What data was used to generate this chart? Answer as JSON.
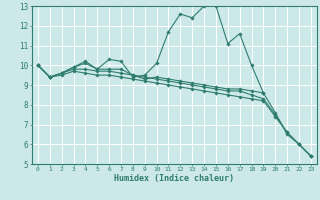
{
  "xlabel": "Humidex (Indice chaleur)",
  "ylabel": "",
  "bg_color": "#cce8e8",
  "grid_color": "#ffffff",
  "line_color": "#2e7d6e",
  "xlim": [
    -0.5,
    23.5
  ],
  "ylim": [
    5,
    13
  ],
  "xticks": [
    0,
    1,
    2,
    3,
    4,
    5,
    6,
    7,
    8,
    9,
    10,
    11,
    12,
    13,
    14,
    15,
    16,
    17,
    18,
    19,
    20,
    21,
    22,
    23
  ],
  "yticks": [
    5,
    6,
    7,
    8,
    9,
    10,
    11,
    12,
    13
  ],
  "series": [
    [
      10.0,
      9.4,
      9.6,
      9.9,
      10.2,
      9.8,
      10.3,
      10.2,
      9.4,
      9.5,
      10.1,
      11.7,
      12.6,
      12.4,
      13.0,
      13.0,
      11.1,
      11.6,
      10.0,
      8.6,
      null,
      null,
      null,
      null
    ],
    [
      10.0,
      9.4,
      9.6,
      9.9,
      10.1,
      9.8,
      9.8,
      9.8,
      9.5,
      9.3,
      9.4,
      9.3,
      9.2,
      9.1,
      9.0,
      8.9,
      8.8,
      8.8,
      8.7,
      8.6,
      7.6,
      6.5,
      6.0,
      5.4
    ],
    [
      10.0,
      9.4,
      9.6,
      9.8,
      9.8,
      9.7,
      9.7,
      9.6,
      9.5,
      9.4,
      9.3,
      9.2,
      9.1,
      9.0,
      8.9,
      8.8,
      8.7,
      8.7,
      8.5,
      8.3,
      7.5,
      6.6,
      6.0,
      5.4
    ],
    [
      10.0,
      9.4,
      9.5,
      9.7,
      9.6,
      9.5,
      9.5,
      9.4,
      9.3,
      9.2,
      9.1,
      9.0,
      8.9,
      8.8,
      8.7,
      8.6,
      8.5,
      8.4,
      8.3,
      8.2,
      7.4,
      6.6,
      6.0,
      5.4
    ]
  ]
}
